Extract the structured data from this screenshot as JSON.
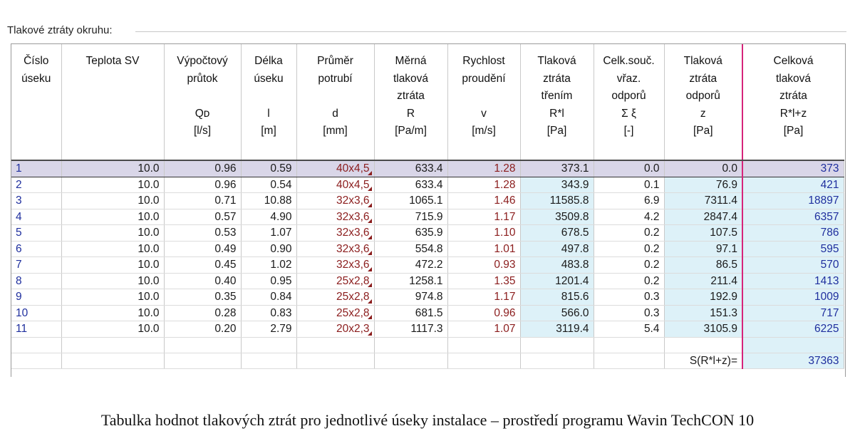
{
  "panel": {
    "title": "Tlakové ztráty okruhu:"
  },
  "columns": [
    {
      "lines": [
        "Číslo",
        "úseku"
      ]
    },
    {
      "lines": [
        "Teplota SV"
      ]
    },
    {
      "lines": [
        "Výpočtový",
        "průtok",
        "",
        "Qᴅ",
        "[l/s]"
      ]
    },
    {
      "lines": [
        "Délka",
        "úseku",
        "",
        "l",
        "[m]"
      ]
    },
    {
      "lines": [
        "Průměr",
        "potrubí",
        "",
        "d",
        "[mm]"
      ]
    },
    {
      "lines": [
        "Měrná",
        "tlaková",
        "ztráta",
        "R",
        "[Pa/m]"
      ]
    },
    {
      "lines": [
        "Rychlost",
        "proudění",
        "",
        "v",
        "[m/s]"
      ]
    },
    {
      "lines": [
        "Tlaková",
        "ztráta",
        "třením",
        "R*l",
        "[Pa]"
      ]
    },
    {
      "lines": [
        "Celk.souč.",
        "vřaz.",
        "odporů",
        "Σ ξ",
        "[-]"
      ]
    },
    {
      "lines": [
        "Tlaková",
        "ztráta",
        "odporů",
        "z",
        "[Pa]"
      ]
    },
    {
      "lines": [
        "Celková",
        "tlaková",
        "ztráta",
        "R*l+z",
        "[Pa]"
      ]
    }
  ],
  "rows": [
    [
      "1",
      "10.0",
      "0.96",
      "0.59",
      "40x4,5",
      "633.4",
      "1.28",
      "373.1",
      "0.0",
      "0.0",
      "373"
    ],
    [
      "2",
      "10.0",
      "0.96",
      "0.54",
      "40x4,5",
      "633.4",
      "1.28",
      "343.9",
      "0.1",
      "76.9",
      "421"
    ],
    [
      "3",
      "10.0",
      "0.71",
      "10.88",
      "32x3,6",
      "1065.1",
      "1.46",
      "11585.8",
      "6.9",
      "7311.4",
      "18897"
    ],
    [
      "4",
      "10.0",
      "0.57",
      "4.90",
      "32x3,6",
      "715.9",
      "1.17",
      "3509.8",
      "4.2",
      "2847.4",
      "6357"
    ],
    [
      "5",
      "10.0",
      "0.53",
      "1.07",
      "32x3,6",
      "635.9",
      "1.10",
      "678.5",
      "0.2",
      "107.5",
      "786"
    ],
    [
      "6",
      "10.0",
      "0.49",
      "0.90",
      "32x3,6",
      "554.8",
      "1.01",
      "497.8",
      "0.2",
      "97.1",
      "595"
    ],
    [
      "7",
      "10.0",
      "0.45",
      "1.02",
      "32x3,6",
      "472.2",
      "0.93",
      "483.8",
      "0.2",
      "86.5",
      "570"
    ],
    [
      "8",
      "10.0",
      "0.40",
      "0.95",
      "25x2,8",
      "1258.1",
      "1.35",
      "1201.4",
      "0.2",
      "211.4",
      "1413"
    ],
    [
      "9",
      "10.0",
      "0.35",
      "0.84",
      "25x2,8",
      "974.8",
      "1.17",
      "815.6",
      "0.3",
      "192.9",
      "1009"
    ],
    [
      "10",
      "10.0",
      "0.28",
      "0.83",
      "25x2,8",
      "681.5",
      "0.96",
      "566.0",
      "0.3",
      "151.3",
      "717"
    ],
    [
      "11",
      "10.0",
      "0.20",
      "2.79",
      "20x2,3",
      "1117.3",
      "1.07",
      "3119.4",
      "5.4",
      "3105.9",
      "6225"
    ]
  ],
  "summary": {
    "label": "S(R*l+z)=",
    "value": "37363"
  },
  "caption": "Tabulka hodnot tlakových ztrát pro jednotlivé úseky instalace – prostředí programu Wavin TechCON 10",
  "colors": {
    "header_rule": "#4a4a4a",
    "accent_pink": "#d6247a",
    "value_blue": "#1f2f9e",
    "value_red": "#8b1d1d",
    "cell_cyan": "#ddf1f8",
    "selected_row": "#d9d6e8"
  }
}
